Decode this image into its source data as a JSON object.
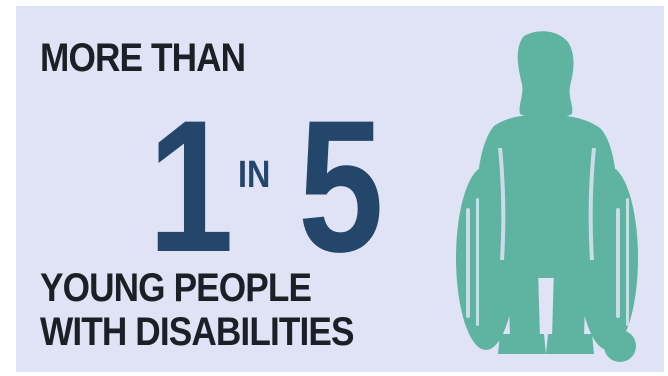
{
  "headline": {
    "top_line": "MORE THAN",
    "number_one": "1",
    "connector": "IN",
    "number_two": "5",
    "bottom_line_1": "YOUNG PEOPLE",
    "bottom_line_2": "WITH DISABILITIES"
  },
  "illustration": {
    "icon": "wheelchair-user-icon"
  },
  "colors": {
    "panel_background": "#dfe3f5",
    "headline_text": "#1c1f26",
    "big_numbers": "#24466b",
    "illustration": "#5fb3a1"
  }
}
